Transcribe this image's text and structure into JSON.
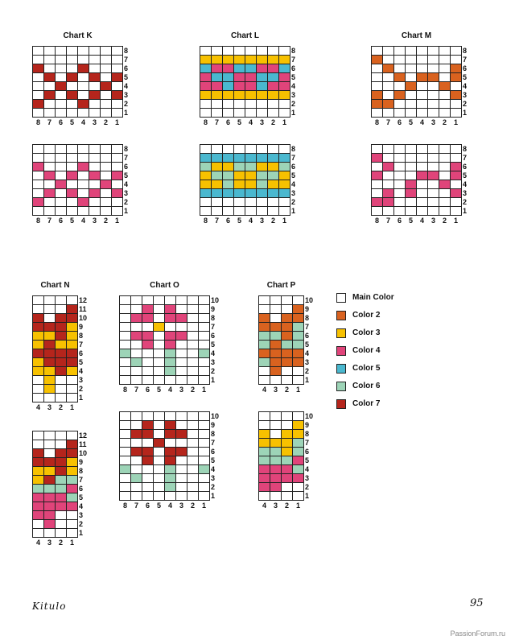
{
  "colors": {
    "main": "#ffffff",
    "c2": "#d9621f",
    "c3": "#f7c100",
    "c4": "#e0447a",
    "c5": "#4ab8cf",
    "c6": "#9dd4b7",
    "c7": "#b5251c"
  },
  "legend": [
    {
      "label": "Main Color",
      "color_key": "main"
    },
    {
      "label": "Color 2",
      "color_key": "c2"
    },
    {
      "label": "Color 3",
      "color_key": "c3"
    },
    {
      "label": "Color 4",
      "color_key": "c4"
    },
    {
      "label": "Color 5",
      "color_key": "c5"
    },
    {
      "label": "Color 6",
      "color_key": "c6"
    },
    {
      "label": "Color 7",
      "color_key": "c7"
    }
  ],
  "footer": {
    "left": "Kitulo",
    "right": "95"
  },
  "watermark": "PassionForum.ru",
  "charts": [
    {
      "id": "K",
      "title": "Chart K",
      "col_labels": [
        "8",
        "7",
        "6",
        "5",
        "4",
        "3",
        "2",
        "1"
      ],
      "row_labels": [
        "8",
        "7",
        "6",
        "5",
        "4",
        "3",
        "2",
        "1"
      ],
      "rows": [
        "........",
        "........",
        "7...7...",
        ".7.7.7.7",
        "..7...7.",
        ".7.7.7.7",
        "7...7...",
        "........"
      ],
      "key": {
        "7": "c7"
      }
    },
    {
      "id": "K2",
      "title": "",
      "col_labels": [
        "8",
        "7",
        "6",
        "5",
        "4",
        "3",
        "2",
        "1"
      ],
      "row_labels": [
        "8",
        "7",
        "6",
        "5",
        "4",
        "3",
        "2",
        "1"
      ],
      "rows": [
        "........",
        "........",
        "4...4...",
        ".4.4.4.4",
        "..4...4.",
        ".4.4.4.4",
        "4...4...",
        "........"
      ],
      "key": {
        "4": "c4"
      }
    },
    {
      "id": "L",
      "title": "Chart L",
      "col_labels": [
        "8",
        "7",
        "6",
        "5",
        "4",
        "3",
        "2",
        "1"
      ],
      "row_labels": [
        "8",
        "7",
        "6",
        "5",
        "4",
        "3",
        "2",
        "1"
      ],
      "rows": [
        "........",
        "33333333",
        "54455445",
        "45544554",
        "44544544",
        "33333333",
        "........",
        "........"
      ],
      "key": {
        "3": "c3",
        "4": "c4",
        "5": "c5"
      }
    },
    {
      "id": "L2",
      "title": "",
      "col_labels": [
        "8",
        "7",
        "6",
        "5",
        "4",
        "3",
        "2",
        "1"
      ],
      "row_labels": [
        "8",
        "7",
        "6",
        "5",
        "4",
        "3",
        "2",
        "1"
      ],
      "rows": [
        "........",
        "55555555",
        "63366336",
        "36633663",
        "33633633",
        "55555555",
        "........",
        "........"
      ],
      "key": {
        "3": "c3",
        "5": "c5",
        "6": "c6"
      }
    },
    {
      "id": "M",
      "title": "Chart M",
      "col_labels": [
        "8",
        "7",
        "6",
        "5",
        "4",
        "3",
        "2",
        "1"
      ],
      "row_labels": [
        "8",
        "7",
        "6",
        "5",
        "4",
        "3",
        "2",
        "1"
      ],
      "rows": [
        "........",
        "2.......",
        ".2.....2",
        "..2.22.2",
        "...2..2.",
        "2.2....2",
        "22......",
        "........"
      ],
      "key": {
        "2": "c2"
      }
    },
    {
      "id": "M2",
      "title": "",
      "col_labels": [
        "8",
        "7",
        "6",
        "5",
        "4",
        "3",
        "2",
        "1"
      ],
      "row_labels": [
        "8",
        "7",
        "6",
        "5",
        "4",
        "3",
        "2",
        "1"
      ],
      "rows": [
        "........",
        "4.......",
        ".4.....4",
        "4...44.4",
        "...4..4.",
        ".4.4...4",
        "44......",
        "........"
      ],
      "key": {
        "4": "c4"
      }
    },
    {
      "id": "N",
      "title": "Chart N",
      "col_labels": [
        "4",
        "3",
        "2",
        "1"
      ],
      "row_labels": [
        "12",
        "11",
        "10",
        "9",
        "8",
        "7",
        "6",
        "5",
        "4",
        "3",
        "2",
        "1"
      ],
      "rows": [
        "....",
        "...7",
        "7.77",
        "7773",
        "3373",
        "3733",
        "7777",
        "3777",
        "3373",
        ".3..",
        ".3..",
        "...."
      ],
      "key": {
        "3": "c3",
        "7": "c7"
      }
    },
    {
      "id": "N2",
      "title": "",
      "col_labels": [
        "4",
        "3",
        "2",
        "1"
      ],
      "row_labels": [
        "12",
        "11",
        "10",
        "9",
        "8",
        "7",
        "6",
        "5",
        "4",
        "3",
        "2",
        "1"
      ],
      "rows": [
        "....",
        "...7",
        "7.77",
        "7773",
        "3373",
        "3766",
        "6664",
        "4446",
        "4444",
        "44..",
        ".4..",
        "...."
      ],
      "key": {
        "3": "c3",
        "4": "c4",
        "6": "c6",
        "7": "c7"
      }
    },
    {
      "id": "O",
      "title": "Chart O",
      "col_labels": [
        "8",
        "7",
        "6",
        "5",
        "4",
        "3",
        "2",
        "1"
      ],
      "row_labels": [
        "10",
        "9",
        "8",
        "7",
        "6",
        "5",
        "4",
        "3",
        "2",
        "1"
      ],
      "rows": [
        "........",
        "..4.4...",
        ".44.44..",
        "...3....",
        ".44.44..",
        "..4.4...",
        "6...6..6",
        ".6..6...",
        "....6...",
        "........"
      ],
      "key": {
        "3": "c3",
        "4": "c4",
        "6": "c6"
      }
    },
    {
      "id": "O2",
      "title": "",
      "col_labels": [
        "8",
        "7",
        "6",
        "5",
        "4",
        "3",
        "2",
        "1"
      ],
      "row_labels": [
        "10",
        "9",
        "8",
        "7",
        "6",
        "5",
        "4",
        "3",
        "2",
        "1"
      ],
      "rows": [
        "........",
        "..7.7...",
        ".77.77..",
        "...7....",
        ".77.77..",
        "..7.7...",
        "6...6..6",
        ".6..6...",
        "....6...",
        "........"
      ],
      "key": {
        "6": "c6",
        "7": "c7"
      }
    },
    {
      "id": "P",
      "title": "Chart P",
      "col_labels": [
        "4",
        "3",
        "2",
        "1"
      ],
      "row_labels": [
        "10",
        "9",
        "8",
        "7",
        "6",
        "5",
        "4",
        "3",
        "2",
        "1"
      ],
      "rows": [
        "....",
        "...2",
        "2.22",
        "2226",
        "6626",
        "6266",
        "2222",
        "6222",
        ".2..",
        "...."
      ],
      "key": {
        "2": "c2",
        "6": "c6"
      }
    },
    {
      "id": "P2",
      "title": "",
      "col_labels": [
        "4",
        "3",
        "2",
        "1"
      ],
      "row_labels": [
        "10",
        "9",
        "8",
        "7",
        "6",
        "5",
        "4",
        "3",
        "2",
        "1"
      ],
      "rows": [
        "....",
        "...3",
        "3.33",
        "3336",
        "6636",
        "6664",
        "4446",
        "4444",
        "44..",
        "...."
      ],
      "key": {
        "3": "c3",
        "4": "c4",
        "6": "c6"
      }
    }
  ]
}
